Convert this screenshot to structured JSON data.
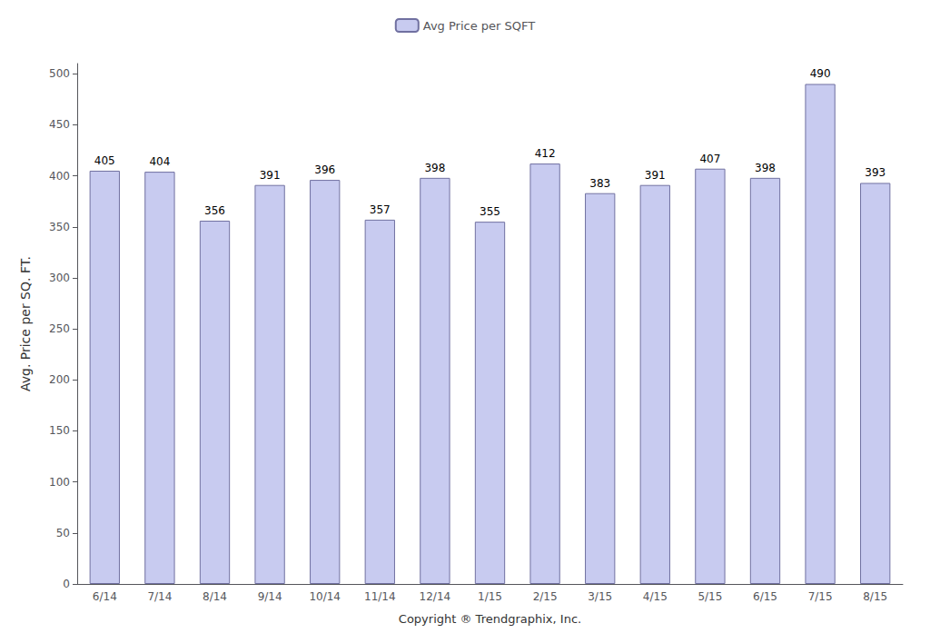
{
  "chart_data": {
    "type": "bar",
    "xlabel": "Copyright ® Trendgraphix, Inc.",
    "ylabel": "Avg. Price per SQ. FT.",
    "categories": [
      "6/14",
      "7/14",
      "8/14",
      "9/14",
      "10/14",
      "11/14",
      "12/14",
      "1/15",
      "2/15",
      "3/15",
      "4/15",
      "5/15",
      "6/15",
      "7/15",
      "8/15"
    ],
    "series": [
      {
        "name": "Avg Price per SQFT",
        "color": "#c8cbf0",
        "values": [
          405,
          404,
          356,
          391,
          396,
          357,
          398,
          355,
          412,
          383,
          391,
          407,
          398,
          490,
          393
        ]
      }
    ],
    "ylim": [
      0,
      510
    ],
    "yticks": [
      0,
      50,
      100,
      150,
      200,
      250,
      300,
      350,
      400,
      450,
      500
    ],
    "grid": false,
    "legend": "top",
    "data_labels": true
  }
}
